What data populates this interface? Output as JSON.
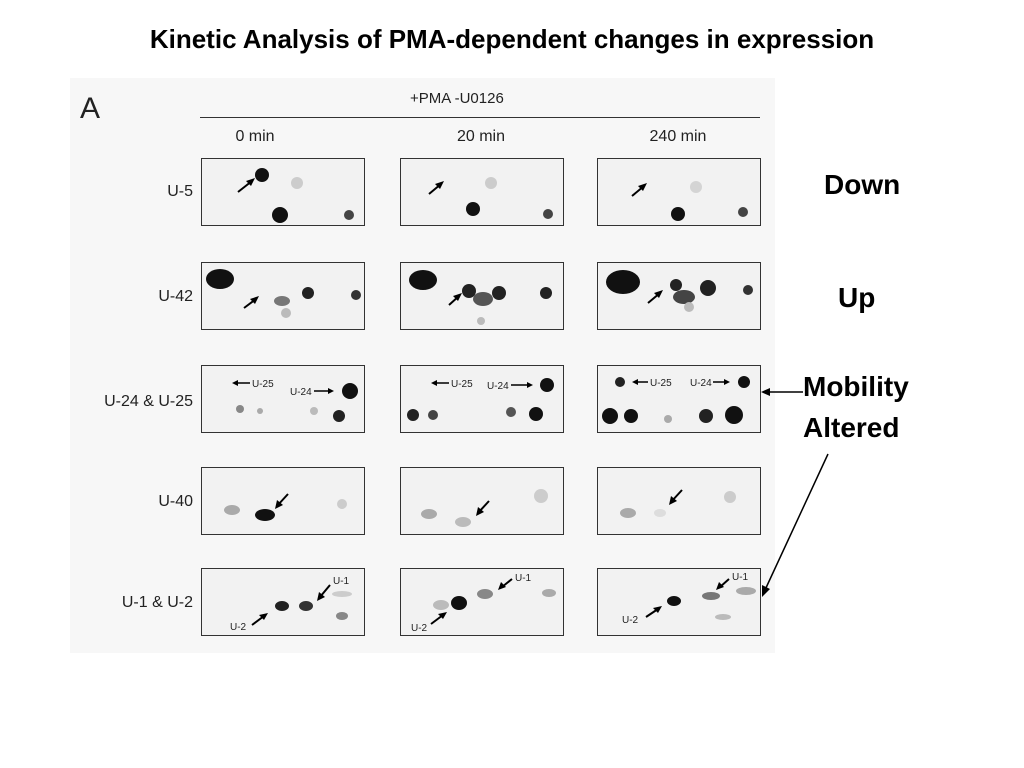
{
  "title": "Kinetic Analysis of PMA-dependent changes in expression",
  "figure": {
    "panel_letter": "A",
    "condition": "+PMA -U0126",
    "times": [
      "0 min",
      "20 min",
      "240 min"
    ],
    "rows": [
      {
        "label": "U-5"
      },
      {
        "label": "U-42"
      },
      {
        "label": "U-24 & U-25",
        "spot_labels": [
          "U-25",
          "U-24"
        ]
      },
      {
        "label": "U-40"
      },
      {
        "label": "U-1 & U-2",
        "spot_labels": [
          "U-1",
          "U-2"
        ]
      }
    ]
  },
  "annotations": {
    "down": "Down",
    "up": "Up",
    "mobility_line1": "Mobility",
    "mobility_line2": "Altered"
  }
}
